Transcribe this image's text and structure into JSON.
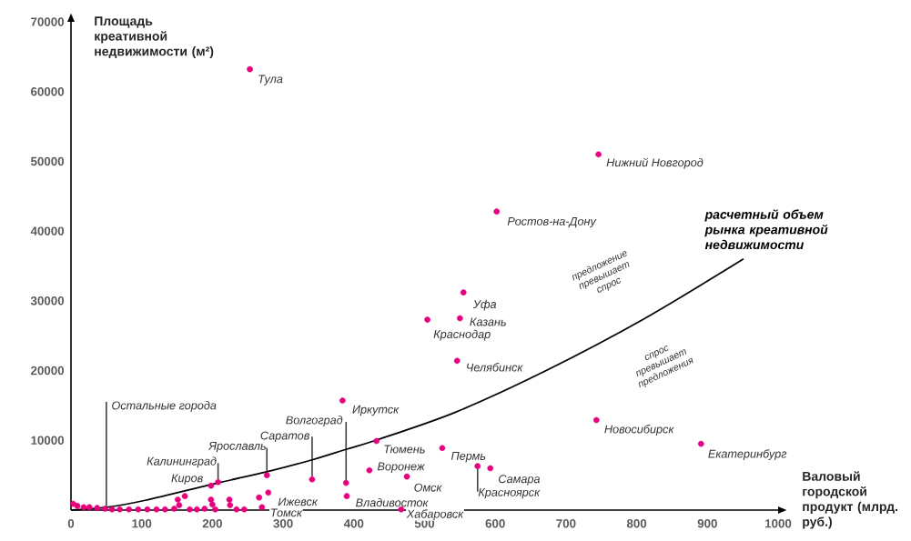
{
  "chart_data": {
    "type": "scatter",
    "xlabel": "Валовый городской продукт (млрд. руб.)",
    "ylabel": "Площадь креативной недвижимости (м²)",
    "xlim": [
      0,
      1000
    ],
    "ylim": [
      0,
      70000
    ],
    "xticks": [
      0,
      100,
      200,
      300,
      400,
      500,
      600,
      700,
      800,
      900,
      1000
    ],
    "yticks": [
      10000,
      20000,
      30000,
      40000,
      50000,
      60000,
      70000
    ],
    "marker": "circle",
    "series": [
      {
        "color": "#e6007e",
        "x": [
          253,
          746,
          602,
          555,
          550,
          504,
          546,
          384,
          432,
          525,
          422,
          475,
          593,
          575,
          743,
          891,
          389,
          341,
          277,
          208,
          198,
          279,
          390,
          270,
          467,
          266,
          3,
          9,
          18,
          26,
          37,
          48,
          58,
          69,
          82,
          95,
          108,
          121,
          133,
          146,
          151,
          161,
          153,
          168,
          178,
          189,
          198,
          200,
          204,
          224,
          225,
          234,
          245
        ],
        "values": [
          63200,
          51000,
          42800,
          31200,
          27500,
          27300,
          21400,
          15700,
          9900,
          8900,
          5700,
          4800,
          6000,
          6300,
          12900,
          9500,
          3900,
          4400,
          5000,
          4000,
          3500,
          2500,
          2000,
          400,
          100,
          1800,
          900,
          600,
          400,
          400,
          300,
          200,
          100,
          100,
          100,
          100,
          100,
          100,
          100,
          200,
          1500,
          2000,
          700,
          100,
          100,
          200,
          1500,
          800,
          100,
          1500,
          700,
          100,
          100
        ]
      },
      {
        "type": "line",
        "name": "расчетный объем рынка креативной недвижимости",
        "color": "#000000",
        "marker": "none",
        "line_style": "solid",
        "x": [
          0,
          51,
          105,
          208,
          277,
          341,
          389,
          431,
          543,
          672,
          812,
          951
        ],
        "values": [
          0,
          400,
          1400,
          3900,
          5500,
          7200,
          8700,
          10000,
          14000,
          20000,
          27500,
          36000
        ]
      }
    ],
    "annotations": [
      {
        "text": "Тула",
        "x": 253,
        "y": 63200
      },
      {
        "text": "Нижний Новгород",
        "x": 746,
        "y": 51000
      },
      {
        "text": "Ростов-на-Дону",
        "x": 602,
        "y": 42800
      },
      {
        "text": "Уфа",
        "x": 555,
        "y": 31200
      },
      {
        "text": "Казань",
        "x": 550,
        "y": 27500
      },
      {
        "text": "Краснодар",
        "x": 504,
        "y": 27300
      },
      {
        "text": "Челябинск",
        "x": 546,
        "y": 21400
      },
      {
        "text": "Иркутск",
        "x": 384,
        "y": 15700
      },
      {
        "text": "Тюмень",
        "x": 432,
        "y": 9900
      },
      {
        "text": "Пермь",
        "x": 525,
        "y": 8900
      },
      {
        "text": "Воронеж",
        "x": 422,
        "y": 5700
      },
      {
        "text": "Омск",
        "x": 475,
        "y": 4800
      },
      {
        "text": "Самара",
        "x": 593,
        "y": 6000
      },
      {
        "text": "Красноярск",
        "x": 575,
        "y": 6300
      },
      {
        "text": "Новосибирск",
        "x": 743,
        "y": 12900
      },
      {
        "text": "Екатеринбург",
        "x": 891,
        "y": 9500
      },
      {
        "text": "Волгоград",
        "x": 389,
        "y": 3900
      },
      {
        "text": "Саратов",
        "x": 341,
        "y": 4400
      },
      {
        "text": "Ярославль",
        "x": 277,
        "y": 5000
      },
      {
        "text": "Калининград",
        "x": 208,
        "y": 4000
      },
      {
        "text": "Киров",
        "x": 198,
        "y": 3500
      },
      {
        "text": "Ижевск",
        "x": 279,
        "y": 2500
      },
      {
        "text": "Владивосток",
        "x": 390,
        "y": 2000
      },
      {
        "text": "Томск",
        "x": 270,
        "y": 400
      },
      {
        "text": "Хабаровск",
        "x": 467,
        "y": 100
      },
      {
        "text": "Остальные города",
        "x": 50,
        "y": 0
      },
      "предложение превышает спрос",
      "спрос превышает предложения"
    ]
  }
}
